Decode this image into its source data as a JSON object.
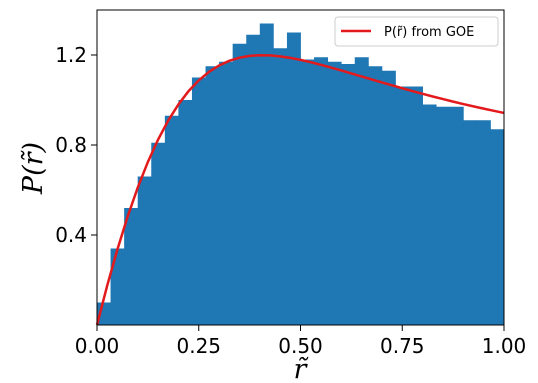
{
  "chart_data": {
    "type": "bar",
    "title": "",
    "xlabel": "r̃",
    "ylabel": "P(r̃)",
    "xlim": [
      0.0,
      1.0
    ],
    "ylim": [
      0.0,
      1.4
    ],
    "xticks": [
      {
        "value": 0.0,
        "label": "0.00"
      },
      {
        "value": 0.25,
        "label": "0.25"
      },
      {
        "value": 0.5,
        "label": "0.50"
      },
      {
        "value": 0.75,
        "label": "0.75"
      },
      {
        "value": 1.0,
        "label": "1.00"
      }
    ],
    "yticks": [
      {
        "value": 0.4,
        "label": "0.4"
      },
      {
        "value": 0.8,
        "label": "0.8"
      },
      {
        "value": 1.2,
        "label": "1.2"
      }
    ],
    "grid": false,
    "legend_position": "top-right",
    "histogram": {
      "name": "",
      "color": "#1f77b4",
      "bin_edges": [
        0.0,
        0.0333,
        0.0667,
        0.1,
        0.1333,
        0.1667,
        0.2,
        0.2333,
        0.2667,
        0.3,
        0.3333,
        0.3667,
        0.4,
        0.4333,
        0.4667,
        0.5,
        0.5333,
        0.5667,
        0.6,
        0.6333,
        0.6667,
        0.7,
        0.7333,
        0.7667,
        0.8,
        0.8333,
        0.8667,
        0.9,
        0.9333,
        0.9667,
        1.0
      ],
      "values": [
        0.1,
        0.34,
        0.52,
        0.66,
        0.81,
        0.93,
        1.0,
        1.1,
        1.15,
        1.17,
        1.25,
        1.29,
        1.34,
        1.23,
        1.3,
        1.18,
        1.19,
        1.17,
        1.16,
        1.19,
        1.15,
        1.13,
        1.06,
        1.06,
        0.98,
        0.97,
        0.97,
        0.91,
        0.91,
        0.87
      ]
    },
    "curve": {
      "name": "P(r̃) from GOE",
      "color": "#e31a1c",
      "x": [
        0.0,
        0.025,
        0.05,
        0.075,
        0.1,
        0.125,
        0.15,
        0.175,
        0.2,
        0.225,
        0.25,
        0.275,
        0.3,
        0.325,
        0.35,
        0.375,
        0.4,
        0.425,
        0.45,
        0.475,
        0.5,
        0.525,
        0.55,
        0.575,
        0.6,
        0.625,
        0.65,
        0.675,
        0.7,
        0.725,
        0.75,
        0.775,
        0.8,
        0.825,
        0.85,
        0.875,
        0.9,
        0.925,
        0.95,
        0.975,
        1.0
      ],
      "y": [
        0.0,
        0.1746,
        0.3351,
        0.4805,
        0.6103,
        0.7246,
        0.8238,
        0.9088,
        0.9803,
        1.0395,
        1.0873,
        1.1249,
        1.1535,
        1.1742,
        1.188,
        1.196,
        1.1991,
        1.1982,
        1.194,
        1.1872,
        1.1784,
        1.168,
        1.1565,
        1.1441,
        1.1312,
        1.118,
        1.1047,
        1.0914,
        1.0781,
        1.0651,
        1.0522,
        1.0397,
        1.0275,
        1.0156,
        1.0041,
        0.9929,
        0.9821,
        0.9717,
        0.9616,
        0.9518,
        0.9424
      ]
    }
  }
}
